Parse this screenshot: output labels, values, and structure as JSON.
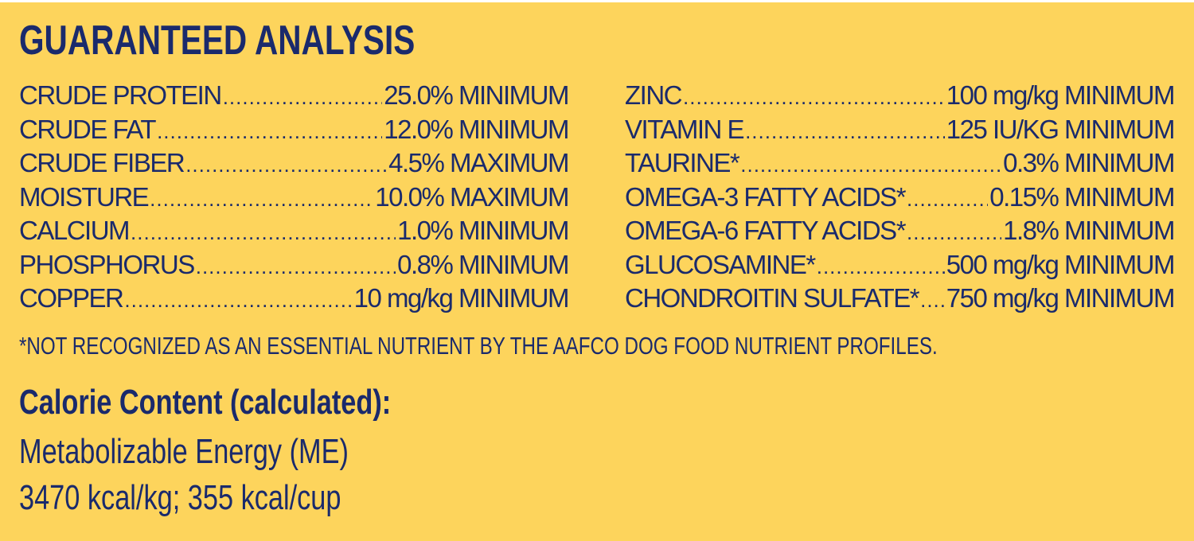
{
  "title": "GUARANTEED ANALYSIS",
  "left": [
    {
      "label": "CRUDE PROTEIN",
      "value": "25.0% MINIMUM"
    },
    {
      "label": "CRUDE FAT",
      "value": "12.0% MINIMUM"
    },
    {
      "label": "CRUDE FIBER",
      "value": "4.5% MAXIMUM"
    },
    {
      "label": "MOISTURE",
      "value": "10.0% MAXIMUM"
    },
    {
      "label": "CALCIUM",
      "value": "1.0% MINIMUM"
    },
    {
      "label": "PHOSPHORUS",
      "value": "0.8% MINIMUM"
    },
    {
      "label": "COPPER",
      "value": "10 mg/kg MINIMUM"
    }
  ],
  "right": [
    {
      "label": "ZINC",
      "value": "100 mg/kg MINIMUM"
    },
    {
      "label": "VITAMIN E",
      "value": "125 IU/KG MINIMUM"
    },
    {
      "label": "TAURINE*",
      "value": "0.3% MINIMUM"
    },
    {
      "label": "OMEGA-3 FATTY ACIDS*",
      "value": "0.15% MINIMUM"
    },
    {
      "label": "OMEGA-6 FATTY ACIDS*",
      "value": "1.8% MINIMUM"
    },
    {
      "label": "GLUCOSAMINE*",
      "value": "500 mg/kg MINIMUM"
    },
    {
      "label": "CHONDROITIN SULFATE*",
      "value": "750 mg/kg MINIMUM"
    }
  ],
  "footnote": "*NOT RECOGNIZED AS AN ESSENTIAL NUTRIENT BY THE AAFCO DOG FOOD NUTRIENT PROFILES.",
  "calorie": {
    "heading": "Calorie Content (calculated):",
    "line1": "Metabolizable Energy (ME)",
    "line2": "3470 kcal/kg; 355 kcal/cup"
  }
}
